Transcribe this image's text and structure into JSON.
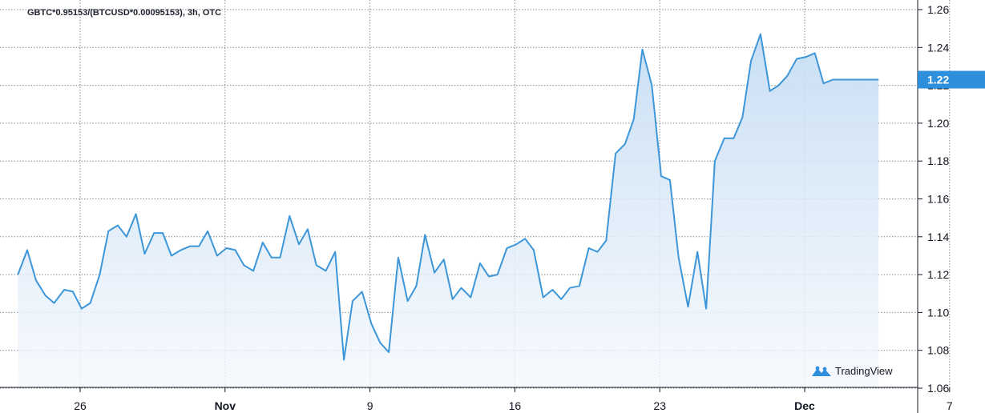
{
  "chart_data": {
    "type": "area",
    "title": "GBTC*0.95153/(BTCUSD*0.00095153), 3h, OTC",
    "watermark": "TradingView",
    "x_ticks": [
      {
        "label": "26",
        "bold": false
      },
      {
        "label": "Nov",
        "bold": true
      },
      {
        "label": "9",
        "bold": false
      },
      {
        "label": "16",
        "bold": false
      },
      {
        "label": "23",
        "bold": false
      },
      {
        "label": "Dec",
        "bold": true
      },
      {
        "label": "7",
        "bold": false
      }
    ],
    "y_ticks": [
      "1.06",
      "1.08",
      "1.10",
      "1.12",
      "1.14",
      "1.16",
      "1.18",
      "1.20",
      "1.22",
      "1.24",
      "1.26"
    ],
    "ylim": [
      1.06,
      1.26
    ],
    "last_value_label": "1.22",
    "grid": true,
    "colors": {
      "line": "#3d96d8",
      "fill_top": "#c6ddf4",
      "fill_bottom": "#f4f8fd",
      "grid": "#7f8b97",
      "badge": "#2e8fdd",
      "axis_text": "#131722"
    },
    "series": [
      {
        "x": [
          0,
          0.065,
          0.125,
          0.19,
          0.25,
          0.32,
          0.38,
          0.44,
          0.5,
          0.565,
          0.625,
          0.69,
          0.75,
          0.815,
          0.875,
          0.94,
          1.0,
          1.06,
          1.125,
          1.19,
          1.25,
          1.31,
          1.375,
          1.44,
          1.5,
          1.56,
          1.625,
          1.69,
          1.75,
          1.81,
          1.875,
          1.94,
          2.0,
          2.06,
          2.125,
          2.19,
          2.25,
          2.31,
          2.375,
          2.44,
          2.5,
          2.56,
          2.625,
          2.69,
          2.75,
          2.81,
          2.875,
          2.94,
          3.0,
          3.06,
          3.125,
          3.19,
          3.25,
          3.31,
          3.375,
          3.44,
          3.5,
          3.56,
          3.625,
          3.69,
          3.75,
          3.81,
          3.875,
          3.94,
          4.0,
          4.06,
          4.125,
          4.19,
          4.25,
          4.31,
          4.375,
          4.44,
          4.5,
          4.56,
          4.625,
          4.69,
          4.75,
          4.81,
          4.875,
          4.94,
          5.0,
          5.06,
          5.125,
          5.19,
          5.25,
          5.31,
          5.375,
          5.44,
          5.5,
          5.56,
          5.625,
          5.69,
          5.75,
          5.81,
          5.875,
          5.94
        ],
        "y": [
          1.12,
          1.133,
          1.117,
          1.109,
          1.105,
          1.112,
          1.111,
          1.102,
          1.105,
          1.12,
          1.143,
          1.146,
          1.14,
          1.152,
          1.131,
          1.142,
          1.142,
          1.13,
          1.133,
          1.135,
          1.135,
          1.143,
          1.13,
          1.134,
          1.133,
          1.125,
          1.122,
          1.137,
          1.129,
          1.129,
          1.151,
          1.136,
          1.144,
          1.125,
          1.122,
          1.132,
          1.075,
          1.106,
          1.111,
          1.094,
          1.084,
          1.079,
          1.129,
          1.106,
          1.114,
          1.141,
          1.121,
          1.128,
          1.107,
          1.113,
          1.108,
          1.126,
          1.119,
          1.12,
          1.134,
          1.136,
          1.139,
          1.133,
          1.108,
          1.112,
          1.107,
          1.113,
          1.114,
          1.134,
          1.132,
          1.138,
          1.184,
          1.189,
          1.202,
          1.239,
          1.22,
          1.172,
          1.17,
          1.129,
          1.103,
          1.132,
          1.102,
          1.18,
          1.192,
          1.192,
          1.203,
          1.233,
          1.247,
          1.217,
          1.22,
          1.225,
          1.234,
          1.235,
          1.237,
          1.221,
          1.223,
          1.223,
          1.223,
          1.223,
          1.223,
          1.223
        ]
      }
    ]
  }
}
